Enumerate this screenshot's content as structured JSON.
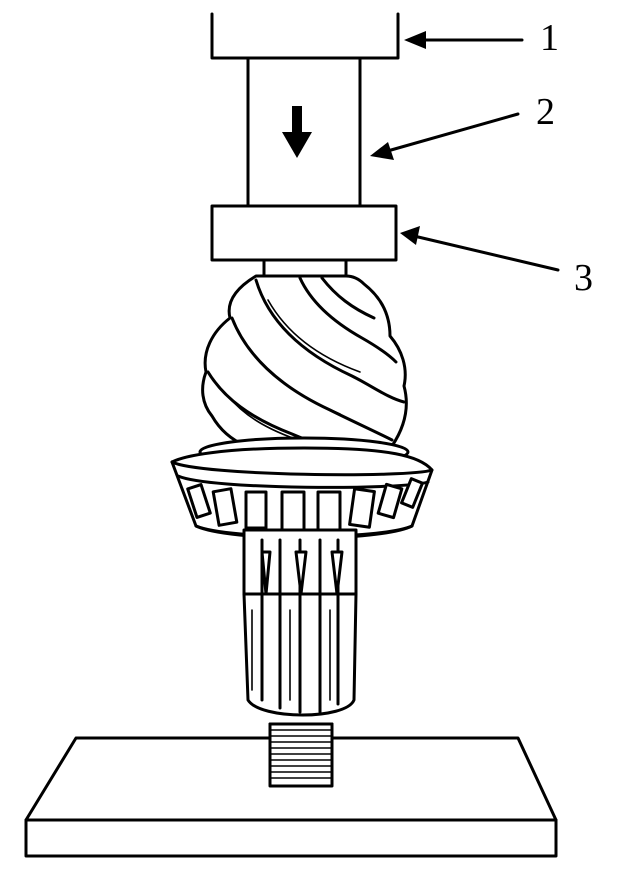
{
  "labels": {
    "callout_1": "1",
    "callout_2": "2",
    "callout_3": "3"
  },
  "colors": {
    "ink": "#000000",
    "paper": "#ffffff"
  }
}
